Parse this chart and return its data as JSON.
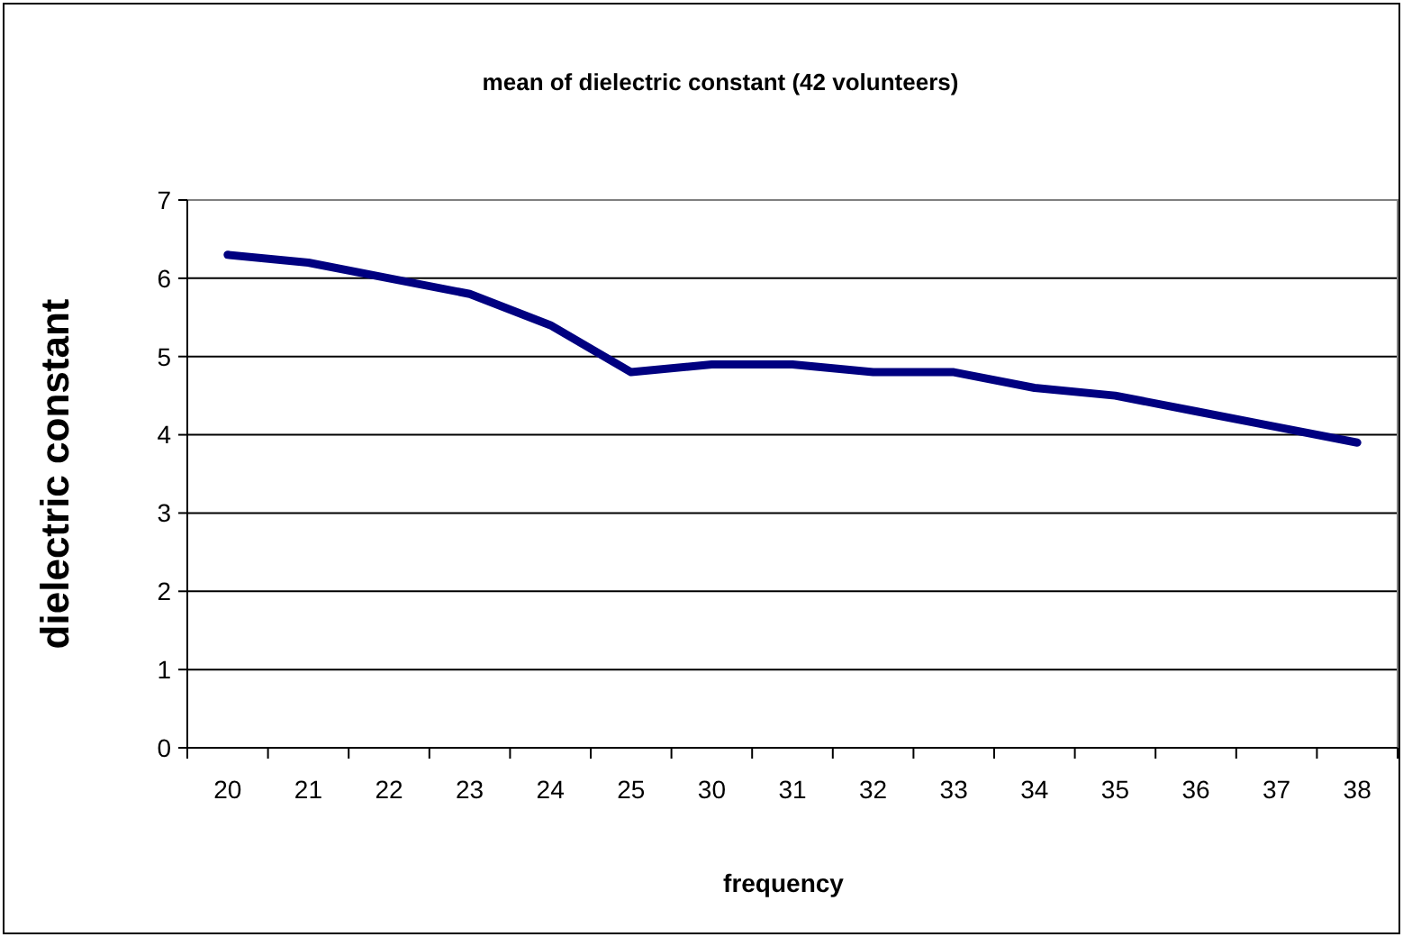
{
  "chart_data": {
    "type": "line",
    "title": "mean of dielectric constant (42 volunteers)",
    "xlabel": "frequency",
    "ylabel": "dielectric constant",
    "categories": [
      "20",
      "21",
      "22",
      "23",
      "24",
      "25",
      "30",
      "31",
      "32",
      "33",
      "34",
      "35",
      "36",
      "37",
      "38"
    ],
    "series": [
      {
        "color": "#000080",
        "values": [
          6.3,
          6.2,
          6.0,
          5.8,
          5.4,
          4.8,
          4.9,
          4.9,
          4.8,
          4.8,
          4.6,
          4.5,
          4.3,
          4.1,
          3.9
        ]
      }
    ],
    "ylim": [
      0,
      7
    ],
    "yticks": [
      0,
      1,
      2,
      3,
      4,
      5,
      6,
      7
    ],
    "grid": "y",
    "marker": "none",
    "line_style": "solid"
  }
}
